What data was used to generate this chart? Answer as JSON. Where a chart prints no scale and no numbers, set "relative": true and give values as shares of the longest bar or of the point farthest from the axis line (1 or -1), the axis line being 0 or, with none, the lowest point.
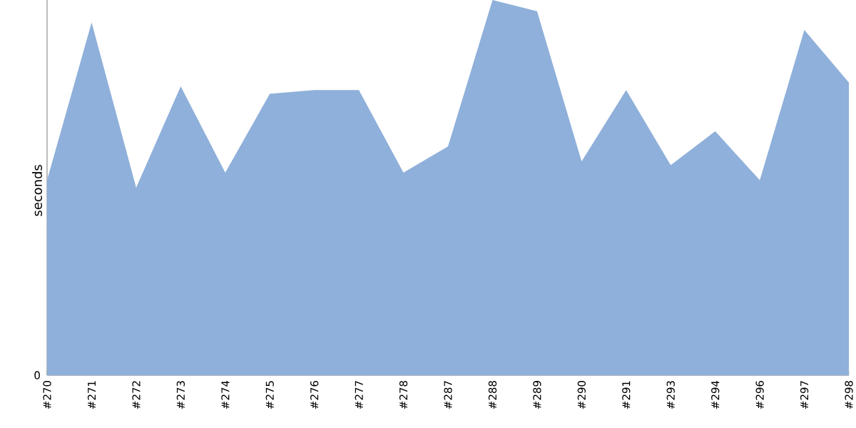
{
  "chart_data": {
    "type": "area",
    "ylabel": "seconds",
    "relative": true,
    "annotations": [
      "0"
    ],
    "categories": [
      "#270",
      "#271",
      "#272",
      "#273",
      "#274",
      "#275",
      "#276",
      "#277",
      "#278",
      "#287",
      "#288",
      "#289",
      "#290",
      "#291",
      "#293",
      "#294",
      "#296",
      "#297",
      "#298"
    ],
    "color": "#8fb0da",
    "values": [
      0.52,
      0.94,
      0.5,
      0.77,
      0.54,
      0.75,
      0.76,
      0.76,
      0.54,
      0.61,
      1,
      0.97,
      0.57,
      0.76,
      0.56,
      0.65,
      0.52,
      0.92,
      0.78
    ]
  }
}
